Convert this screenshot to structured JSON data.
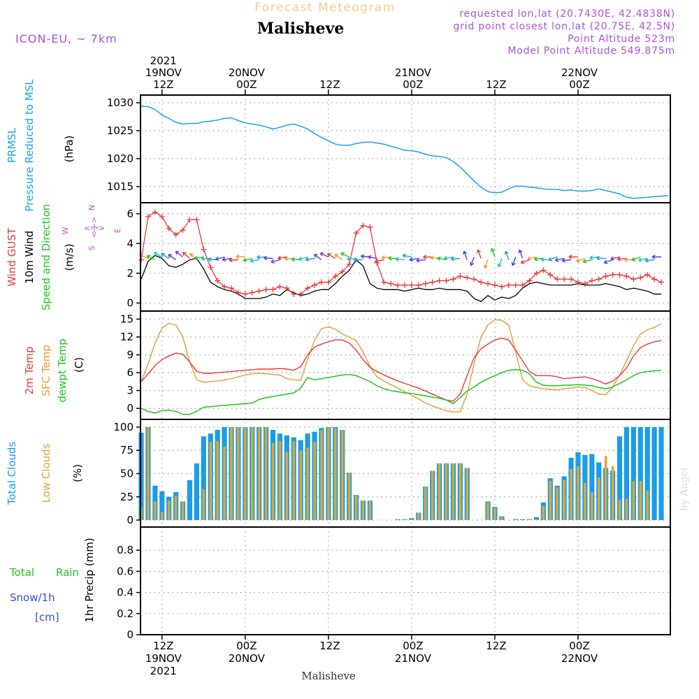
{
  "header": {
    "chart_title": "Forecast Meteogram",
    "location": "Malisheve",
    "model": "ICON-EU, ~ 7km",
    "requested": "requested lon,lat (20.7430E, 42.4838N)",
    "grid_point": "grid point closest lon,lat (20.75E, 42.5N)",
    "point_altitude": "Point Altitude 523m",
    "model_altitude": "Model Point Altitude 549.875m",
    "footer": "Malisheve",
    "credit": "by Angel"
  },
  "top_axis": [
    {
      "h": 3,
      "lines": [
        "2021",
        "19NOV",
        "12Z"
      ]
    },
    {
      "h": 15,
      "lines": [
        "20NOV",
        "00Z"
      ]
    },
    {
      "h": 27,
      "lines": [
        "12Z"
      ]
    },
    {
      "h": 39,
      "lines": [
        "21NOV",
        "00Z"
      ]
    },
    {
      "h": 51,
      "lines": [
        "12Z"
      ]
    },
    {
      "h": 63,
      "lines": [
        "22NOV",
        "00Z"
      ]
    }
  ],
  "bottom_axis": [
    {
      "h": 3,
      "lines": [
        "12Z",
        "19NOV",
        "2021"
      ]
    },
    {
      "h": 15,
      "lines": [
        "00Z",
        "20NOV"
      ]
    },
    {
      "h": 27,
      "lines": [
        "12Z"
      ]
    },
    {
      "h": 39,
      "lines": [
        "00Z",
        "21NOV"
      ]
    },
    {
      "h": 51,
      "lines": [
        "12Z"
      ]
    },
    {
      "h": 63,
      "lines": [
        "00Z",
        "22NOV"
      ]
    }
  ],
  "labels": {
    "pressure": [
      "PRMSL",
      "Pressure Reduced to MSL",
      "(hPa)"
    ],
    "wind": [
      "Wind GUST",
      "10m Wind",
      "Speed and Direction",
      "(m/s)"
    ],
    "compass": {
      "n": "N",
      "s": "S",
      "w": "W",
      "e": "E",
      "arrows": "<-|->"
    },
    "temp": [
      "2m Temp",
      "SFC Temp",
      "dewpt Temp",
      "(C)"
    ],
    "clouds": [
      "Total Clouds",
      "Low Clouds",
      "(%)"
    ],
    "precip": [
      "Total",
      "Rain",
      "Snow/1h",
      "[cm]",
      "1hr Precip (mm)"
    ]
  },
  "colors": {
    "pressure": "#1aa3e8",
    "gust": "#e8383a",
    "wind": "#000000",
    "temp2m": "#e8383a",
    "sfc": "#e0a030",
    "dewpt": "#22c422",
    "total_clouds": "#1a9ce8",
    "low_clouds": "#d8a838",
    "title": "#f3cc8a",
    "info": "#b050d8",
    "rain_label": "#22c422",
    "snow_label": "#3050e0",
    "credit": "#d8d8d8"
  },
  "chart_data": [
    {
      "type": "line",
      "name": "PRMSL Pressure Reduced to MSL",
      "ylabel": "(hPa)",
      "ylim": [
        1012.5,
        1031
      ],
      "yticks": [
        1015,
        1020,
        1025,
        1030
      ],
      "x_hours": [
        0,
        1,
        2,
        3,
        4,
        5,
        6,
        7,
        8,
        9,
        10,
        11,
        12,
        13,
        14,
        15,
        16,
        17,
        18,
        19,
        20,
        21,
        22,
        23,
        24,
        25,
        26,
        27,
        28,
        29,
        30,
        31,
        32,
        33,
        34,
        35,
        36,
        37,
        38,
        39,
        40,
        41,
        42,
        43,
        44,
        45,
        46,
        47,
        48,
        49,
        50,
        51,
        52,
        53,
        54,
        55,
        56,
        57,
        58,
        59,
        60,
        61,
        62,
        63,
        64,
        65,
        66,
        67,
        68,
        69,
        70,
        71,
        72,
        73,
        74,
        75,
        76
      ],
      "values": [
        1029.4,
        1029.3,
        1028.8,
        1027.8,
        1027.2,
        1026.5,
        1026.2,
        1026.3,
        1026.3,
        1026.6,
        1026.7,
        1026.9,
        1027.2,
        1027.3,
        1026.8,
        1026.4,
        1026.2,
        1026.0,
        1025.7,
        1025.3,
        1025.6,
        1026.0,
        1026.2,
        1025.8,
        1025.3,
        1024.5,
        1023.8,
        1023.2,
        1022.6,
        1022.4,
        1022.4,
        1022.7,
        1022.9,
        1023.0,
        1022.8,
        1022.6,
        1022.2,
        1021.9,
        1021.5,
        1021.4,
        1021.2,
        1020.8,
        1020.5,
        1020.4,
        1020.2,
        1019.5,
        1018.5,
        1017.3,
        1016.0,
        1014.9,
        1014.1,
        1013.9,
        1014.0,
        1014.6,
        1015.1,
        1015.1,
        1014.9,
        1014.8,
        1014.6,
        1014.5,
        1014.5,
        1014.3,
        1014.4,
        1014.2,
        1014.2,
        1014.3,
        1014.6,
        1014.3,
        1014.0,
        1013.7,
        1013.1,
        1012.9,
        1013.0,
        1013.1,
        1013.2,
        1013.3,
        1013.4
      ]
    },
    {
      "type": "line",
      "name": "10m Wind / Wind GUST",
      "ylabel": "(m/s)",
      "ylim": [
        -0.4,
        6.6
      ],
      "yticks": [
        0,
        2,
        4,
        6
      ],
      "x_hours": [
        0,
        1,
        2,
        3,
        4,
        5,
        6,
        7,
        8,
        9,
        10,
        11,
        12,
        13,
        14,
        15,
        16,
        17,
        18,
        19,
        20,
        21,
        22,
        23,
        24,
        25,
        26,
        27,
        28,
        29,
        30,
        31,
        32,
        33,
        34,
        35,
        36,
        37,
        38,
        39,
        40,
        41,
        42,
        43,
        44,
        45,
        46,
        47,
        48,
        49,
        50,
        51,
        52,
        53,
        54,
        55,
        56,
        57,
        58,
        59,
        60,
        61,
        62,
        63,
        64,
        65,
        66,
        67,
        68,
        69,
        70,
        71,
        72,
        73,
        74,
        75
      ],
      "series": [
        {
          "name": "Wind GUST",
          "values": [
            2.9,
            5.8,
            6.1,
            5.8,
            5.0,
            4.6,
            4.9,
            5.6,
            5.6,
            3.6,
            2.4,
            1.5,
            1.1,
            1.0,
            0.7,
            0.6,
            0.7,
            0.8,
            0.9,
            0.9,
            1.1,
            1.0,
            0.6,
            0.6,
            1.0,
            1.2,
            1.4,
            1.4,
            1.8,
            2.1,
            2.6,
            4.7,
            5.2,
            5.1,
            2.7,
            1.4,
            1.3,
            1.2,
            1.2,
            1.2,
            1.2,
            1.3,
            1.4,
            1.5,
            1.5,
            1.6,
            1.8,
            1.7,
            1.6,
            1.4,
            1.3,
            1.2,
            1.1,
            1.2,
            1.2,
            1.2,
            1.5,
            2.0,
            2.2,
            1.9,
            1.6,
            1.6,
            1.6,
            1.4,
            1.3,
            1.5,
            1.6,
            1.8,
            1.9,
            1.9,
            1.8,
            1.6,
            1.7,
            1.9,
            1.6,
            1.4
          ]
        },
        {
          "name": "10m Wind",
          "values": [
            1.6,
            2.8,
            3.2,
            3.0,
            2.5,
            2.4,
            2.6,
            2.9,
            3.0,
            2.3,
            1.4,
            1.1,
            0.9,
            0.8,
            0.6,
            0.3,
            0.3,
            0.3,
            0.4,
            0.6,
            0.5,
            0.9,
            0.7,
            0.5,
            0.6,
            0.8,
            0.9,
            0.9,
            1.3,
            1.8,
            2.2,
            2.9,
            2.5,
            1.3,
            1.0,
            0.9,
            0.9,
            0.9,
            0.8,
            0.9,
            1.0,
            0.9,
            0.9,
            1.0,
            0.9,
            0.9,
            0.9,
            0.8,
            0.3,
            0.1,
            0.5,
            0.2,
            0.4,
            0.3,
            0.5,
            1.0,
            1.3,
            1.4,
            1.3,
            1.2,
            1.2,
            1.2,
            1.2,
            1.3,
            1.2,
            1.2,
            1.2,
            1.3,
            1.2,
            1.1,
            0.9,
            1.0,
            0.9,
            0.8,
            0.6,
            0.6
          ]
        }
      ],
      "direction_arrows": true
    },
    {
      "type": "line",
      "name": "2m Temp / SFC Temp / dewpt Temp",
      "ylabel": "(C)",
      "ylim": [
        -1.5,
        16
      ],
      "yticks": [
        0,
        3,
        6,
        9,
        12,
        15
      ],
      "x_hours": [
        0,
        1,
        2,
        3,
        4,
        5,
        6,
        7,
        8,
        9,
        10,
        11,
        12,
        13,
        14,
        15,
        16,
        17,
        18,
        19,
        20,
        21,
        22,
        23,
        24,
        25,
        26,
        27,
        28,
        29,
        30,
        31,
        32,
        33,
        34,
        35,
        36,
        37,
        38,
        39,
        40,
        41,
        42,
        43,
        44,
        45,
        46,
        47,
        48,
        49,
        50,
        51,
        52,
        53,
        54,
        55,
        56,
        57,
        58,
        59,
        60,
        61,
        62,
        63,
        64,
        65,
        66,
        67,
        68,
        69,
        70,
        71,
        72,
        73,
        74,
        75
      ],
      "series": [
        {
          "name": "2m Temp",
          "values": [
            4.5,
            5.8,
            7.2,
            8.2,
            8.8,
            9.3,
            9.1,
            7.8,
            6.2,
            5.9,
            5.9,
            6.0,
            6.1,
            6.2,
            6.3,
            6.4,
            6.5,
            6.6,
            6.6,
            6.6,
            6.7,
            6.6,
            6.4,
            7.0,
            9.0,
            10.3,
            10.8,
            11.2,
            11.5,
            11.5,
            11.0,
            9.8,
            8.2,
            6.9,
            6.2,
            5.6,
            5.1,
            4.6,
            4.2,
            3.8,
            3.4,
            2.9,
            2.4,
            1.9,
            1.4,
            1.2,
            2.4,
            5.5,
            8.5,
            10.0,
            10.8,
            11.5,
            11.8,
            11.5,
            9.8,
            8.0,
            6.2,
            5.5,
            5.5,
            5.5,
            5.3,
            5.0,
            5.1,
            5.2,
            5.3,
            5.0,
            4.6,
            4.1,
            4.6,
            5.5,
            6.8,
            8.8,
            10.2,
            10.8,
            11.2,
            11.4
          ]
        },
        {
          "name": "SFC Temp",
          "values": [
            4.5,
            7.5,
            11.0,
            13.5,
            14.3,
            14.0,
            12.0,
            7.8,
            4.8,
            4.4,
            4.5,
            4.6,
            4.8,
            5.0,
            5.3,
            5.6,
            5.8,
            5.9,
            5.8,
            5.7,
            5.6,
            5.0,
            4.8,
            4.7,
            8.2,
            11.5,
            13.4,
            13.7,
            13.3,
            12.5,
            12.0,
            11.4,
            9.5,
            7.0,
            5.3,
            4.6,
            4.0,
            3.4,
            2.8,
            2.2,
            1.6,
            0.9,
            0.4,
            0.0,
            -0.4,
            -0.6,
            -0.6,
            2.4,
            7.5,
            12.0,
            14.0,
            14.9,
            14.8,
            14.0,
            9.5,
            4.8,
            3.8,
            3.5,
            3.3,
            3.2,
            3.1,
            3.3,
            3.4,
            3.6,
            3.5,
            3.0,
            2.4,
            2.3,
            3.6,
            5.6,
            8.0,
            10.5,
            12.5,
            13.2,
            13.6,
            14.2
          ]
        },
        {
          "name": "dewpt Temp",
          "values": [
            0.0,
            -0.5,
            -0.8,
            -0.4,
            -0.3,
            -0.5,
            -1.0,
            -1.0,
            -0.5,
            0.2,
            0.3,
            0.4,
            0.5,
            0.6,
            0.7,
            0.8,
            0.9,
            1.5,
            1.8,
            2.0,
            2.2,
            2.4,
            2.6,
            3.4,
            5.2,
            4.8,
            5.0,
            5.2,
            5.4,
            5.6,
            5.7,
            5.5,
            5.0,
            4.5,
            3.8,
            3.3,
            3.0,
            2.8,
            2.6,
            2.5,
            2.3,
            2.1,
            1.9,
            1.7,
            1.4,
            0.8,
            1.8,
            2.9,
            3.6,
            4.4,
            5.0,
            5.5,
            6.0,
            6.4,
            6.5,
            6.4,
            5.8,
            4.4,
            3.9,
            3.8,
            3.8,
            3.9,
            3.9,
            4.0,
            3.9,
            3.8,
            3.5,
            3.3,
            3.6,
            4.2,
            4.8,
            5.5,
            6.0,
            6.2,
            6.3,
            6.4
          ]
        }
      ]
    },
    {
      "type": "bar",
      "name": "Total Clouds / Low Clouds",
      "ylabel": "(%)",
      "ylim": [
        -6,
        106
      ],
      "yticks": [
        0,
        25,
        50,
        75,
        100
      ],
      "x_hours": [
        0,
        1,
        2,
        3,
        4,
        5,
        6,
        7,
        8,
        9,
        10,
        11,
        12,
        13,
        14,
        15,
        16,
        17,
        18,
        19,
        20,
        21,
        22,
        23,
        24,
        25,
        26,
        27,
        28,
        29,
        30,
        31,
        32,
        33,
        34,
        35,
        36,
        37,
        38,
        39,
        40,
        41,
        42,
        43,
        44,
        45,
        46,
        47,
        48,
        49,
        50,
        51,
        52,
        53,
        54,
        55,
        56,
        57,
        58,
        59,
        60,
        61,
        62,
        63,
        64,
        65,
        66,
        67,
        68,
        69,
        70,
        71,
        72,
        73,
        74,
        75
      ],
      "series": [
        {
          "name": "Total Clouds",
          "values": [
            94,
            100,
            37,
            31,
            25,
            30,
            20,
            43,
            61,
            90,
            93,
            97,
            100,
            100,
            100,
            100,
            100,
            100,
            100,
            97,
            93,
            91,
            89,
            86,
            93,
            95,
            99,
            100,
            100,
            97,
            51,
            27,
            21,
            21,
            0,
            0,
            0,
            1,
            1,
            2,
            8,
            36,
            53,
            61,
            61,
            61,
            61,
            56,
            0,
            0,
            20,
            14,
            4,
            0,
            1,
            1,
            1,
            3,
            19,
            45,
            37,
            47,
            67,
            73,
            70,
            71,
            62,
            56,
            53,
            90,
            100,
            100,
            100,
            100,
            100,
            100
          ]
        },
        {
          "name": "Low Clouds",
          "values": [
            14,
            100,
            20,
            9,
            21,
            26,
            20,
            0,
            0,
            33,
            84,
            85,
            79,
            100,
            100,
            100,
            100,
            100,
            100,
            83,
            85,
            73,
            85,
            75,
            78,
            84,
            97,
            100,
            99,
            97,
            51,
            27,
            21,
            21,
            0,
            0,
            0,
            1,
            1,
            1,
            8,
            36,
            53,
            61,
            61,
            61,
            61,
            56,
            0,
            0,
            19,
            13,
            3,
            0,
            1,
            1,
            1,
            1,
            15,
            42,
            35,
            43,
            55,
            58,
            40,
            30,
            46,
            69,
            58,
            22,
            23,
            42,
            42,
            32,
            0,
            0
          ]
        }
      ]
    },
    {
      "type": "bar",
      "name": "1hr Precip",
      "ylabel": "1hr Precip (mm)",
      "ylim": [
        0,
        1.0
      ],
      "yticks": [
        0,
        0.2,
        0.4,
        0.6,
        0.8
      ],
      "series": [
        {
          "name": "Total Rain",
          "values": []
        },
        {
          "name": "Snow/1h",
          "values": []
        }
      ]
    }
  ]
}
